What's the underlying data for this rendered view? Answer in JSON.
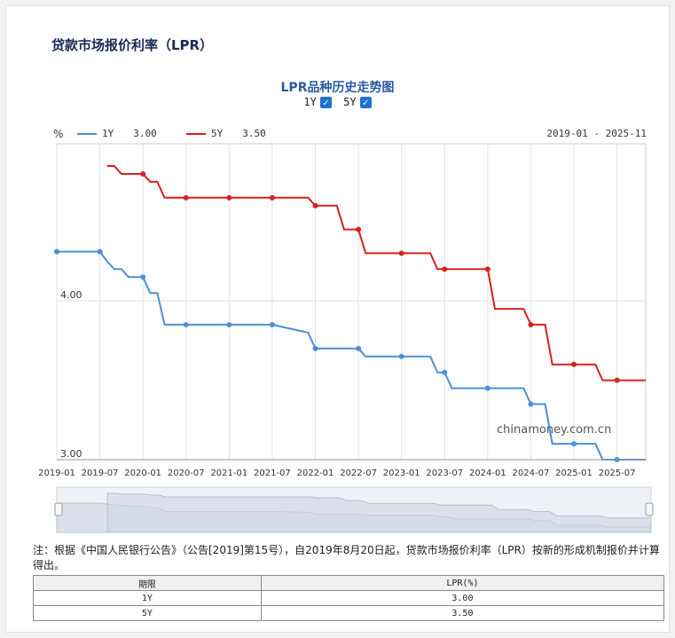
{
  "page": {
    "title": "贷款市场报价利率（LPR）"
  },
  "controls": {
    "toggle_1y": "1Y",
    "toggle_5y": "5Y",
    "check_glyph": "✓"
  },
  "legend": {
    "unit": "%",
    "items": [
      {
        "label": "1Y",
        "value": "3.00",
        "color": "#4a90d9"
      },
      {
        "label": "5Y",
        "value": "3.50",
        "color": "#d62020"
      }
    ],
    "range": "2019-01 - 2025-11"
  },
  "chart_data": {
    "type": "line",
    "title": "LPR品种历史走势图",
    "xlabel": "",
    "ylabel": "%",
    "x_ticks": [
      "2019-01",
      "2019-07",
      "2020-01",
      "2020-07",
      "2021-01",
      "2021-07",
      "2022-01",
      "2022-07",
      "2023-01",
      "2023-07",
      "2024-01",
      "2024-07",
      "2025-01",
      "2025-07"
    ],
    "y_ticks": [
      {
        "value": 4.0,
        "label": "4.00"
      },
      {
        "value": 3.0,
        "label": "3.00"
      }
    ],
    "ylim": [
      3.0,
      4.99
    ],
    "xlim": [
      "2019-01",
      "2025-11"
    ],
    "grid": true,
    "legend_position": "top-left",
    "series": [
      {
        "name": "1Y",
        "color": "#4a90d9",
        "points": [
          [
            "2019-01",
            4.31
          ],
          [
            "2019-07",
            4.31
          ],
          [
            "2019-08",
            4.25
          ],
          [
            "2019-09",
            4.2
          ],
          [
            "2019-10",
            4.2
          ],
          [
            "2019-11",
            4.15
          ],
          [
            "2020-01",
            4.15
          ],
          [
            "2020-02",
            4.05
          ],
          [
            "2020-03",
            4.05
          ],
          [
            "2020-04",
            3.85
          ],
          [
            "2020-07",
            3.85
          ],
          [
            "2021-01",
            3.85
          ],
          [
            "2021-07",
            3.85
          ],
          [
            "2021-12",
            3.8
          ],
          [
            "2022-01",
            3.7
          ],
          [
            "2022-07",
            3.7
          ],
          [
            "2022-08",
            3.65
          ],
          [
            "2023-01",
            3.65
          ],
          [
            "2023-05",
            3.65
          ],
          [
            "2023-06",
            3.55
          ],
          [
            "2023-07",
            3.55
          ],
          [
            "2023-08",
            3.45
          ],
          [
            "2024-01",
            3.45
          ],
          [
            "2024-06",
            3.45
          ],
          [
            "2024-07",
            3.35
          ],
          [
            "2024-09",
            3.35
          ],
          [
            "2024-10",
            3.1
          ],
          [
            "2025-01",
            3.1
          ],
          [
            "2025-04",
            3.1
          ],
          [
            "2025-05",
            3.0
          ],
          [
            "2025-07",
            3.0
          ],
          [
            "2025-11",
            3.0
          ]
        ],
        "markers": [
          "2019-01",
          "2019-07",
          "2020-01",
          "2020-07",
          "2021-01",
          "2021-07",
          "2022-01",
          "2022-07",
          "2023-01",
          "2023-07",
          "2024-01",
          "2024-07",
          "2025-01",
          "2025-07"
        ]
      },
      {
        "name": "5Y",
        "color": "#d62020",
        "points": [
          [
            "2019-08",
            4.85
          ],
          [
            "2019-09",
            4.85
          ],
          [
            "2019-10",
            4.8
          ],
          [
            "2020-01",
            4.8
          ],
          [
            "2020-02",
            4.75
          ],
          [
            "2020-03",
            4.75
          ],
          [
            "2020-04",
            4.65
          ],
          [
            "2020-07",
            4.65
          ],
          [
            "2021-01",
            4.65
          ],
          [
            "2021-07",
            4.65
          ],
          [
            "2021-12",
            4.65
          ],
          [
            "2022-01",
            4.6
          ],
          [
            "2022-04",
            4.6
          ],
          [
            "2022-05",
            4.45
          ],
          [
            "2022-07",
            4.45
          ],
          [
            "2022-08",
            4.3
          ],
          [
            "2023-01",
            4.3
          ],
          [
            "2023-05",
            4.3
          ],
          [
            "2023-06",
            4.2
          ],
          [
            "2023-07",
            4.2
          ],
          [
            "2024-01",
            4.2
          ],
          [
            "2024-02",
            3.95
          ],
          [
            "2024-06",
            3.95
          ],
          [
            "2024-07",
            3.85
          ],
          [
            "2024-09",
            3.85
          ],
          [
            "2024-10",
            3.6
          ],
          [
            "2025-01",
            3.6
          ],
          [
            "2025-04",
            3.6
          ],
          [
            "2025-05",
            3.5
          ],
          [
            "2025-07",
            3.5
          ],
          [
            "2025-11",
            3.5
          ]
        ],
        "markers": [
          "2020-01",
          "2020-07",
          "2021-01",
          "2021-07",
          "2022-01",
          "2022-07",
          "2023-01",
          "2023-07",
          "2024-01",
          "2024-07",
          "2025-01",
          "2025-07"
        ]
      }
    ],
    "watermark": "chinamoney.com.cn"
  },
  "navigator": {
    "left_handle": "⦀",
    "right_handle": "⦀"
  },
  "note": "注：根据《中国人民银行公告》（公告[2019]第15号），自2019年8月20日起，贷款市场报价利率（LPR）按新的形成机制报价并计算得出。",
  "table": {
    "headers": [
      "期限",
      "LPR(%)"
    ],
    "rows": [
      [
        "1Y",
        "3.00"
      ],
      [
        "5Y",
        "3.50"
      ]
    ]
  }
}
